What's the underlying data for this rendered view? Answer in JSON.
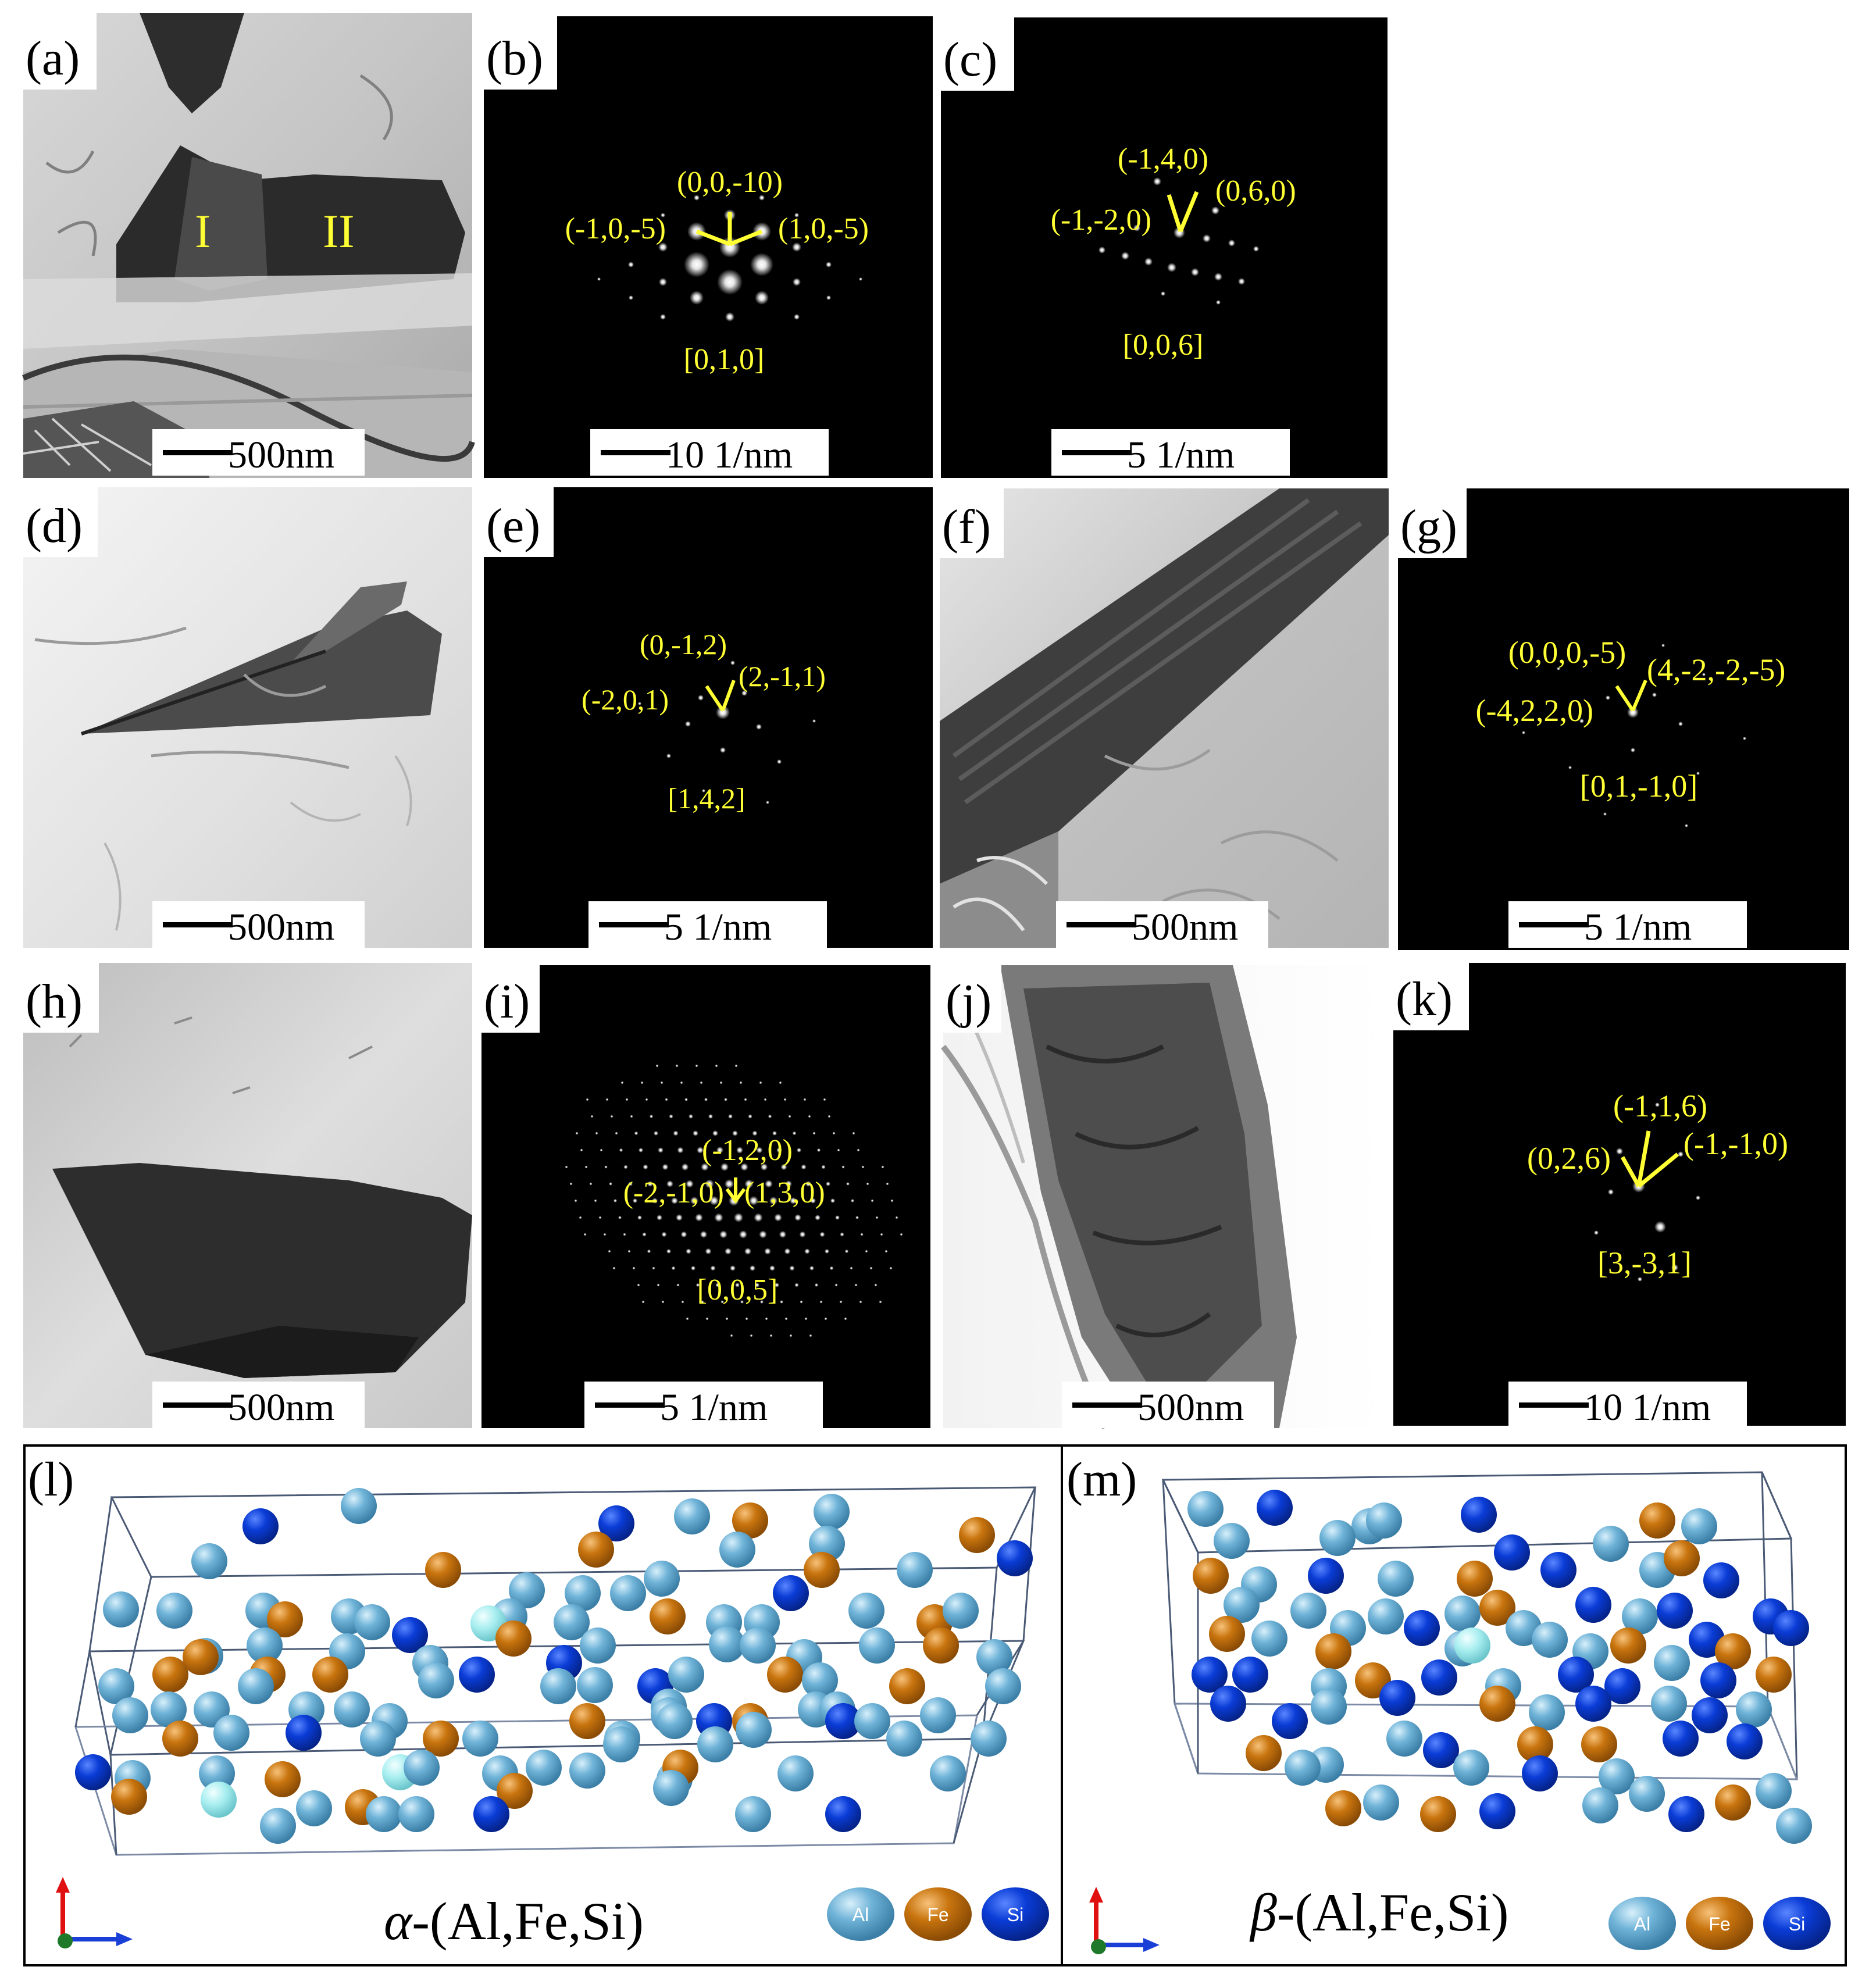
{
  "figure": {
    "panels": [
      {
        "letter": "(a)",
        "kind": "tem",
        "bg": "#bdbdbd",
        "labels": [
          {
            "text": "I",
            "color": "#ffff33"
          },
          {
            "text": "II",
            "color": "#ffff33"
          }
        ],
        "scale": "500nm"
      },
      {
        "letter": "(b)",
        "kind": "sad",
        "labels": [
          "(0,0,-10)",
          "(-1,0,-5)",
          "(1,0,-5)",
          "[0,1,0]"
        ],
        "scale": "10 1/nm"
      },
      {
        "letter": "(c)",
        "kind": "sad",
        "labels": [
          "(-1,4,0)",
          "(0,6,0)",
          "(-1,-2,0)",
          "[0,0,6]"
        ],
        "scale": "5 1/nm"
      },
      {
        "letter": "(d)",
        "kind": "tem",
        "bg": "#e8e8e8",
        "scale": "500nm"
      },
      {
        "letter": "(e)",
        "kind": "sad",
        "labels": [
          "(0,-1,2)",
          "(2,-1,1)",
          "(-2,0,1)",
          "[1,4,2]"
        ],
        "scale": "5 1/nm"
      },
      {
        "letter": "(f)",
        "kind": "tem",
        "bg": "#c8c8c8",
        "scale": "500nm"
      },
      {
        "letter": "(g)",
        "kind": "sad",
        "labels": [
          "(0,0,0,-5)",
          "(4,-2,-2,-5)",
          "(-4,2,2,0)",
          "[0,1,-1,0]"
        ],
        "scale": "5 1/nm"
      },
      {
        "letter": "(h)",
        "kind": "tem",
        "bg": "#d4d4d4",
        "scale": "500nm"
      },
      {
        "letter": "(i)",
        "kind": "sad",
        "labels": [
          "(-1,2,0)",
          "(-2,-1,0)",
          "(1,3,0)",
          "[0,0,5]"
        ],
        "scale": "5 1/nm"
      },
      {
        "letter": "(j)",
        "kind": "tem",
        "bg": "#e4e4e4",
        "scale": "500nm"
      },
      {
        "letter": "(k)",
        "kind": "sad",
        "labels": [
          "(-1,1,6)",
          "(0,2,6)",
          "(-1,-1,0)",
          "[3,-3,1]"
        ],
        "scale": "10 1/nm"
      }
    ],
    "structures": [
      {
        "letter": "(l)",
        "phase_symbol": "α",
        "phase_formula": "-(Al,Fe,Si)"
      },
      {
        "letter": "(m)",
        "phase_symbol": "β",
        "phase_formula": "-(Al,Fe,Si)"
      }
    ],
    "legend": [
      {
        "label": "Al",
        "color": "#6fb3d8"
      },
      {
        "label": "Fe",
        "color": "#c8740e"
      },
      {
        "label": "Si",
        "color": "#0a3cd6"
      }
    ],
    "label_color": "#ffff33"
  }
}
